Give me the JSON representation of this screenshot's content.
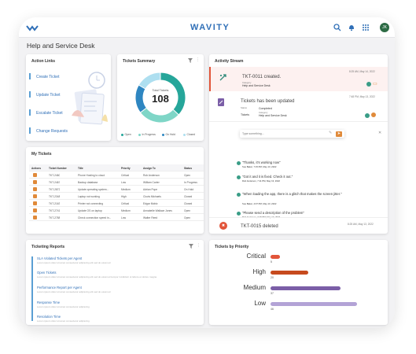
{
  "app": {
    "logo": "WAVITY",
    "page_title": "Help and Service Desk",
    "avatar": "JK"
  },
  "action_links": {
    "title": "Action Links",
    "items": [
      "Create Ticket",
      "Update Ticket",
      "Escalate Ticket",
      "Change Requests"
    ]
  },
  "summary": {
    "title": "Tickets Summary",
    "total_label": "Total Tickets",
    "total": "108",
    "legend": [
      {
        "label": "Open",
        "color": "#26a69a"
      },
      {
        "label": "In Progress",
        "color": "#7fd6c7"
      },
      {
        "label": "On Hold",
        "color": "#2e86c1"
      },
      {
        "label": "Closed",
        "color": "#aedff0"
      }
    ]
  },
  "my_tickets": {
    "title": "My Tickets",
    "headers": [
      "Actions",
      "Ticket Number",
      "Title",
      "Priority",
      "Assign To",
      "Status"
    ],
    "rows": [
      [
        "TKT-2460",
        "Phone Hosting to cloud",
        "Critical",
        "Rob Anderson",
        "Open"
      ],
      [
        "TKT-2467",
        "Backup database",
        "Low",
        "William Carter",
        "In Progress"
      ],
      [
        "TKT-2872",
        "Update operating system...",
        "Medium",
        "Adrian Pope",
        "On Hold"
      ],
      [
        "TKT-2348",
        "Laptop not working",
        "High",
        "Clovis Michaels",
        "Closed"
      ],
      [
        "TKT-2163",
        "Printer not connecting",
        "Critical",
        "Edgar Mobiz",
        "Closed"
      ],
      [
        "TKT-2741",
        "Update OS on laptop",
        "Medium",
        "Annabelle Wallace Jones",
        "Open"
      ],
      [
        "TKT-2788",
        "Check connection speed in...",
        "Low",
        "Walter Reed",
        "Open"
      ]
    ]
  },
  "reports": {
    "title": "Ticketing Reports",
    "items": [
      {
        "title": "SLA Violated Tickets per Agent",
        "sub": "Lorem ipsum dolor sit amet consectetur adipiscing elit sed do eiusmod"
      },
      {
        "title": "Open Tickets",
        "sub": "Lorem ipsum dolor sit amet consectetur adipiscing elit sed do eiusmod tempor incididunt ut labore et dolore magna"
      },
      {
        "title": "Performance Report per Agent",
        "sub": "Lorem ipsum dolor sit amet consectetur adipiscing elit sed do eiusmod"
      },
      {
        "title": "Response Time",
        "sub": "Lorem ipsum dolor sit amet consectetur adipiscing"
      },
      {
        "title": "Resolution Time",
        "sub": "Lorem ipsum dolor sit amet consectetur adipiscing"
      }
    ]
  },
  "stream": {
    "title": "Activity Stream",
    "created": {
      "title": "TKT-0011 created.",
      "time": "8:25 AM, May 14, 2022",
      "cat_label": "Category",
      "cat": "Help and Service Desk"
    },
    "updated": {
      "title": "Tickets has been updated",
      "time": "7:48 PM, May 13, 2022",
      "f1_label": "Status",
      "f1": "Completed",
      "f2_label": "Tickets",
      "f2": "Category",
      "f3": "Help and Service Desk"
    },
    "compose_placeholder": "Type something...",
    "messages": [
      {
        "text": "\"Thanks, it's working now\"",
        "meta": "Sue Baker, 7:15 PM, May 13, 2022"
      },
      {
        "text": "\"Got it and it is fixed. Check it out.\"",
        "meta": "Rob Anderson, 7:11 PM, May 13, 2022"
      },
      {
        "text": "\"When loading the app, there is a glitch that makes the screen jitter.\"",
        "meta": "Sue Baker, 4:07 PM, May 13, 2022"
      },
      {
        "text": "\"Please send a description of the problem\"",
        "meta": "Rob Anderson, 3:16 PM, May 13, 2022"
      }
    ],
    "deleted": {
      "title": "TKT-0015 deleted",
      "time": "8:25 AM, May 13, 2022"
    }
  },
  "priority": {
    "title": "Tickets by Priority"
  },
  "chart_data": {
    "type": "bar",
    "categories": [
      "Critical",
      "High",
      "Medium",
      "Low"
    ],
    "values": [
      5,
      20,
      37,
      46
    ],
    "xlim": [
      0,
      50
    ],
    "colors": [
      "#e2553a",
      "#c64a1e",
      "#7b5ea7",
      "#b3a3d6"
    ]
  }
}
